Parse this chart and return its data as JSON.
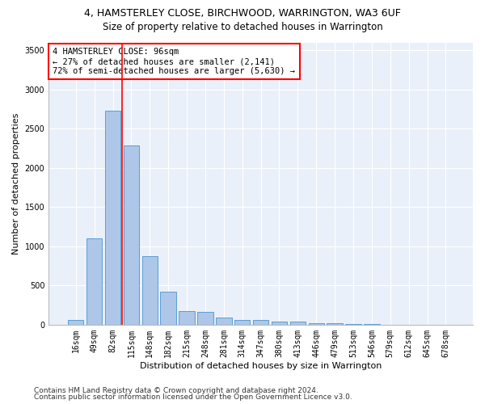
{
  "title_line1": "4, HAMSTERLEY CLOSE, BIRCHWOOD, WARRINGTON, WA3 6UF",
  "title_line2": "Size of property relative to detached houses in Warrington",
  "xlabel": "Distribution of detached houses by size in Warrington",
  "ylabel": "Number of detached properties",
  "categories": [
    "16sqm",
    "49sqm",
    "82sqm",
    "115sqm",
    "148sqm",
    "182sqm",
    "215sqm",
    "248sqm",
    "281sqm",
    "314sqm",
    "347sqm",
    "380sqm",
    "413sqm",
    "446sqm",
    "479sqm",
    "513sqm",
    "546sqm",
    "579sqm",
    "612sqm",
    "645sqm",
    "678sqm"
  ],
  "values": [
    55,
    1100,
    2730,
    2290,
    875,
    425,
    170,
    165,
    95,
    65,
    55,
    40,
    35,
    20,
    15,
    5,
    5,
    3,
    2,
    2,
    2
  ],
  "bar_color": "#aec6e8",
  "bar_edge_color": "#5a9fd4",
  "vline_color": "red",
  "vline_pos": 2.5,
  "annotation_text": "4 HAMSTERLEY CLOSE: 96sqm\n← 27% of detached houses are smaller (2,141)\n72% of semi-detached houses are larger (5,630) →",
  "annotation_box_color": "white",
  "annotation_box_edge": "red",
  "ylim": [
    0,
    3600
  ],
  "yticks": [
    0,
    500,
    1000,
    1500,
    2000,
    2500,
    3000,
    3500
  ],
  "bg_color": "#eaf0f9",
  "footer_line1": "Contains HM Land Registry data © Crown copyright and database right 2024.",
  "footer_line2": "Contains public sector information licensed under the Open Government Licence v3.0.",
  "title_fontsize": 9,
  "subtitle_fontsize": 8.5,
  "xlabel_fontsize": 8,
  "ylabel_fontsize": 8,
  "tick_fontsize": 7,
  "annot_fontsize": 7.5,
  "footer_fontsize": 6.5
}
